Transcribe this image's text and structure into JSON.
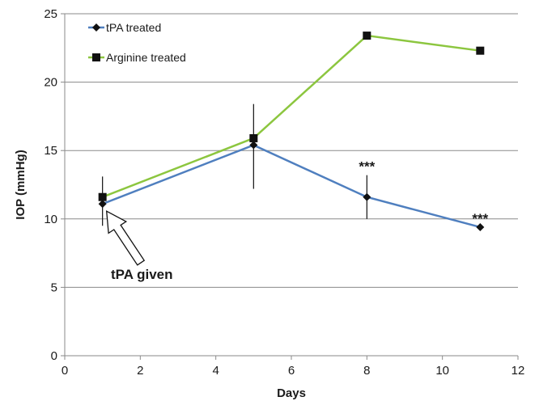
{
  "chart_data": {
    "type": "line",
    "xlabel": "Days",
    "ylabel": "IOP (mmHg)",
    "xlim": [
      0,
      12
    ],
    "ylim": [
      0,
      25
    ],
    "x_ticks": [
      "0",
      "2",
      "4",
      "6",
      "8",
      "10",
      "12"
    ],
    "y_ticks": [
      "0",
      "5",
      "10",
      "15",
      "20",
      "25"
    ],
    "grid": "horizontal",
    "legend_position": "top-left",
    "series": [
      {
        "name": "tPA treated",
        "color": "#4f7fbf",
        "marker": "diamond",
        "x": [
          1,
          5,
          8,
          11
        ],
        "y": [
          11.1,
          15.4,
          11.6,
          9.4
        ],
        "error_low": [
          9.5,
          12.2,
          10.0,
          null
        ],
        "error_high": [
          13.1,
          18.4,
          13.2,
          null
        ]
      },
      {
        "name": "Arginine treated",
        "color": "#8cc63f",
        "marker": "square",
        "x": [
          1,
          5,
          8,
          11
        ],
        "y": [
          11.6,
          15.9,
          23.4,
          22.3
        ]
      }
    ],
    "significance_marks": [
      {
        "x": 8,
        "label": "***"
      },
      {
        "x": 11,
        "label": "***"
      }
    ],
    "annotation": {
      "text": "tPA given",
      "x": 1
    }
  }
}
